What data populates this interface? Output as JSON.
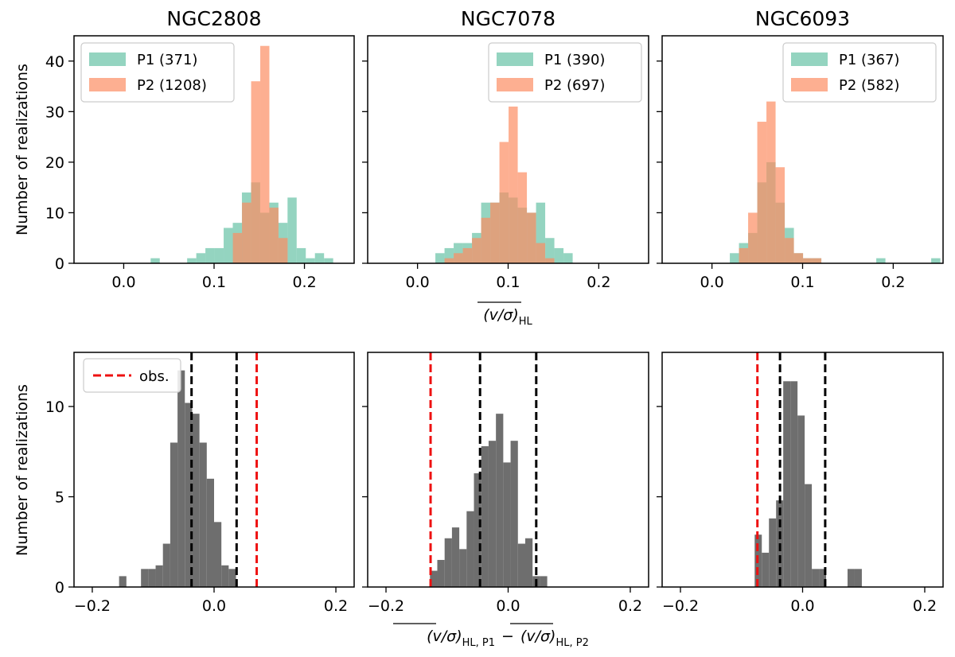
{
  "colors": {
    "p1": "#66c2a5",
    "p2": "#fc8d62",
    "diff": "#6e6e6e",
    "obs": "#ee1111",
    "pct": "#000000"
  },
  "chart_data": [
    {
      "type": "bar",
      "id": "top-ngc2808",
      "title": "NGC2808",
      "xlim": [
        -0.055,
        0.255
      ],
      "ylim": [
        0,
        45
      ],
      "xticks": [
        "0.0",
        "0.1",
        "0.2"
      ],
      "xtick_values": [
        0.0,
        0.1,
        0.2
      ],
      "yticks": [
        "0",
        "10",
        "20",
        "30",
        "40"
      ],
      "ytick_values": [
        0,
        10,
        20,
        30,
        40
      ],
      "bin_width": 0.0101,
      "legend_position": "top-left",
      "series": [
        {
          "name": "P1 (371)",
          "key": "p1",
          "bin_start": 0.0298,
          "values": [
            1,
            0,
            0,
            0,
            1,
            2,
            3,
            3,
            7,
            8,
            14,
            16,
            10,
            12,
            8,
            13,
            3,
            1,
            2,
            1
          ]
        },
        {
          "name": "P2 (1208)",
          "key": "p2",
          "bin_start": 0.1208,
          "values": [
            6,
            12,
            36,
            43,
            11,
            5
          ]
        }
      ]
    },
    {
      "type": "bar",
      "id": "top-ngc7078",
      "title": "NGC7078",
      "xlim": [
        -0.055,
        0.255
      ],
      "ylim": [
        0,
        45
      ],
      "xticks": [
        "0.0",
        "0.1",
        "0.2"
      ],
      "xtick_values": [
        0.0,
        0.1,
        0.2
      ],
      "yticks": [],
      "ytick_values": [
        0,
        10,
        20,
        30,
        40
      ],
      "bin_width": 0.0101,
      "legend_position": "top-right",
      "series": [
        {
          "name": "P1 (390)",
          "key": "p1",
          "bin_start": 0.0197,
          "values": [
            2,
            3,
            4,
            4,
            6,
            12,
            12,
            14,
            13,
            11,
            10,
            12,
            5,
            3,
            2
          ]
        },
        {
          "name": "P2 (697)",
          "key": "p2",
          "bin_start": 0.0298,
          "values": [
            1,
            2,
            3,
            5,
            9,
            12,
            24,
            31,
            18,
            10,
            4,
            1
          ]
        }
      ]
    },
    {
      "type": "bar",
      "id": "top-ngc6093",
      "title": "NGC6093",
      "xlim": [
        -0.055,
        0.255
      ],
      "ylim": [
        0,
        45
      ],
      "xticks": [
        "0.0",
        "0.1",
        "0.2"
      ],
      "xtick_values": [
        0.0,
        0.1,
        0.2
      ],
      "yticks": [],
      "ytick_values": [
        0,
        10,
        20,
        30,
        40
      ],
      "bin_width": 0.0101,
      "legend_position": "top-right",
      "series": [
        {
          "name": "P1 (367)",
          "key": "p1",
          "bin_start": 0.0197,
          "values": [
            2,
            4,
            6,
            16,
            20,
            12,
            7,
            2,
            1,
            1,
            0,
            0,
            0,
            0,
            0,
            0,
            1,
            0,
            0,
            0,
            0,
            0,
            1
          ]
        },
        {
          "name": "P2 (582)",
          "key": "p2",
          "bin_start": 0.0298,
          "values": [
            3,
            10,
            28,
            32,
            19,
            5,
            2,
            1,
            1
          ]
        }
      ]
    },
    {
      "type": "bar",
      "id": "bottom-ngc2808",
      "title": "",
      "xlim": [
        -0.23,
        0.23
      ],
      "ylim": [
        0,
        13
      ],
      "xticks": [
        "−0.2",
        "0.0",
        "0.2"
      ],
      "xtick_values": [
        -0.2,
        0.0,
        0.2
      ],
      "yticks": [
        "0",
        "5",
        "10"
      ],
      "ytick_values": [
        0,
        5,
        10
      ],
      "bin_width": 0.012,
      "legend_position": "top-left",
      "series": [
        {
          "name": "diff",
          "key": "diff",
          "bin_start": -0.156,
          "values": [
            0.6,
            0,
            0,
            1,
            1,
            1.2,
            2.4,
            8,
            12,
            10.2,
            9.6,
            8,
            6,
            3.6,
            1.2,
            1
          ]
        }
      ],
      "vlines": [
        {
          "x": -0.037,
          "key": "pct"
        },
        {
          "x": 0.037,
          "key": "pct"
        },
        {
          "x": 0.07,
          "key": "obs",
          "label": "obs."
        }
      ]
    },
    {
      "type": "bar",
      "id": "bottom-ngc7078",
      "title": "",
      "xlim": [
        -0.23,
        0.23
      ],
      "ylim": [
        0,
        13
      ],
      "xticks": [
        "−0.2",
        "0.0",
        "0.2"
      ],
      "xtick_values": [
        -0.2,
        0.0,
        0.2
      ],
      "yticks": [],
      "ytick_values": [
        0,
        5,
        10
      ],
      "bin_width": 0.012,
      "legend_position": "top-left",
      "series": [
        {
          "name": "diff",
          "key": "diff",
          "bin_start": -0.128,
          "values": [
            0.9,
            1.5,
            2.7,
            3.3,
            2.1,
            4.2,
            6.3,
            7.8,
            8.1,
            9.6,
            6.9,
            8.1,
            2.4,
            2.7,
            0.6,
            0.6
          ]
        }
      ],
      "vlines": [
        {
          "x": -0.127,
          "key": "obs"
        },
        {
          "x": -0.046,
          "key": "pct"
        },
        {
          "x": 0.046,
          "key": "pct"
        }
      ]
    },
    {
      "type": "bar",
      "id": "bottom-ngc6093",
      "title": "",
      "xlim": [
        -0.23,
        0.23
      ],
      "ylim": [
        0,
        13
      ],
      "xticks": [
        "−0.2",
        "0.0",
        "0.2"
      ],
      "xtick_values": [
        -0.2,
        0.0,
        0.2
      ],
      "yticks": [],
      "ytick_values": [
        0,
        5,
        10
      ],
      "bin_width": 0.0117,
      "legend_position": "top-left",
      "series": [
        {
          "name": "diff",
          "key": "diff",
          "bin_start": -0.0785,
          "values": [
            2.9,
            1.9,
            3.8,
            4.8,
            11.4,
            11.4,
            9.5,
            5.7,
            1,
            1,
            0,
            0,
            0,
            1,
            1
          ]
        }
      ],
      "vlines": [
        {
          "x": -0.074,
          "key": "obs"
        },
        {
          "x": -0.037,
          "key": "pct"
        },
        {
          "x": 0.037,
          "key": "pct"
        }
      ]
    }
  ],
  "labels": {
    "ylabel": "Number of realizations",
    "top_xlabel_main": "(v/σ)",
    "top_xlabel_sub": "HL",
    "bottom_xlabel_a_main": "(v/σ)",
    "bottom_xlabel_a_sub": "HL, P1",
    "bottom_xlabel_minus": "−",
    "bottom_xlabel_b_main": "(v/σ)",
    "bottom_xlabel_b_sub": "HL, P2",
    "obs_legend": "obs."
  }
}
